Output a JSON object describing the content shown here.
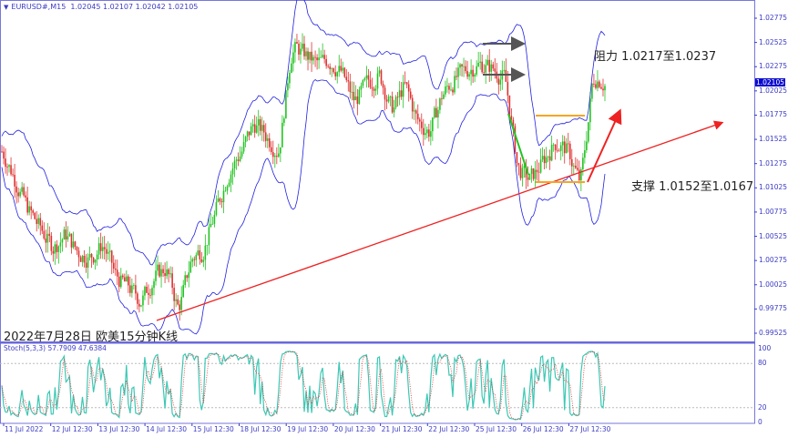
{
  "header": {
    "symbol": "EURUSD#,M15",
    "open": "1.02045",
    "high": "1.02107",
    "low": "1.02042",
    "close": "1.02105"
  },
  "current_price_tag": "1.02105",
  "annotations": {
    "resistance": "阻力 1.0217至1.0237",
    "support": "支撑 1.0152至1.0167",
    "caption": "2022年7月28日 欧美15分钟K线"
  },
  "indicator": {
    "label": "Stoch(5,3,3) 57.7909 47.6384",
    "levels": [
      "100",
      "80",
      "20",
      "0"
    ]
  },
  "colors": {
    "bull": "#22c322",
    "bear": "#e03030",
    "bands": "#2020e0",
    "trend": "#ee2222",
    "box": "#f5a623",
    "stoch_main": "#3cc8b4",
    "stoch_signal": "#e03030",
    "axis": "#3b3bc4"
  },
  "chart_data": {
    "type": "candlestick",
    "price_axis": [
      "1.02775",
      "1.02525",
      "1.02275",
      "1.02025",
      "1.01775",
      "1.01525",
      "1.01275",
      "1.01025",
      "1.00775",
      "1.00525",
      "1.00275",
      "1.00025",
      "0.99775",
      "0.99525"
    ],
    "ylim": [
      0.995,
      1.0298
    ],
    "time_axis": [
      "11 Jul 2022",
      "12 Jul 12:30",
      "13 Jul 12:30",
      "14 Jul 12:30",
      "15 Jul 12:30",
      "18 Jul 12:30",
      "19 Jul 12:30",
      "20 Jul 12:30",
      "21 Jul 12:30",
      "22 Jul 12:30",
      "25 Jul 12:30",
      "26 Jul 12:30",
      "27 Jul 12:30"
    ],
    "approx_close": [
      1.014,
      1.011,
      1.008,
      1.006,
      1.004,
      1.0055,
      1.0035,
      1.003,
      1.0045,
      1.001,
      1.0,
      0.9985,
      1.001,
      1.002,
      0.9975,
      1.003,
      1.004,
      1.008,
      1.012,
      1.014,
      1.017,
      1.0155,
      1.014,
      1.025,
      1.024,
      1.023,
      1.0235,
      1.022,
      1.019,
      1.021,
      1.022,
      1.018,
      1.021,
      1.017,
      1.016,
      1.02,
      1.0215,
      1.0225,
      1.023,
      1.0225,
      1.0215,
      1.012,
      1.011,
      1.013,
      1.015,
      1.014,
      1.0105,
      1.022,
      1.021
    ]
  }
}
